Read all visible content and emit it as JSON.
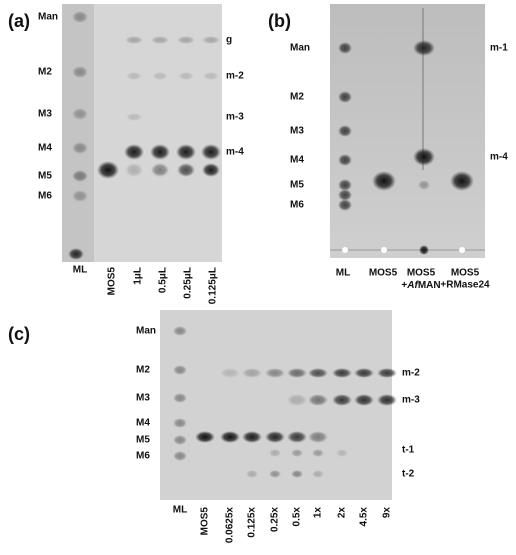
{
  "panels": [
    {
      "label": "(a)",
      "left_labels": [
        "Man",
        "M2",
        "M3",
        "M4",
        "M5",
        "M6"
      ],
      "right_labels": [
        "g",
        "m-2",
        "m-3",
        "m-4"
      ],
      "lanes": [
        [
          "ML"
        ],
        [
          "MOS5"
        ],
        [
          "1μL"
        ],
        [
          "0.5μL"
        ],
        [
          "0.25μL"
        ],
        [
          "0.125μL"
        ]
      ]
    },
    {
      "label": "(b)",
      "left_labels": [
        "Man",
        "M2",
        "M3",
        "M4",
        "M5",
        "M6"
      ],
      "right_labels": [
        "m-1",
        "m-4"
      ],
      "lanes": [
        [
          "ML"
        ],
        [
          "MOS5"
        ],
        [
          "MOS5",
          [
            {
              "text": "+"
            },
            {
              "text": "Af",
              "italic": true
            },
            {
              "text": "MAN"
            }
          ]
        ],
        [
          "MOS5",
          "+RMase24"
        ]
      ]
    },
    {
      "label": "(c)",
      "left_labels": [
        "Man",
        "M2",
        "M3",
        "M4",
        "M5",
        "M6"
      ],
      "right_labels": [
        "m-2",
        "m-3",
        "t-1",
        "t-2"
      ],
      "lanes": [
        [
          "ML"
        ],
        [
          "MOS5"
        ],
        [
          "0.0625x"
        ],
        [
          "0.125x"
        ],
        [
          "0.25x"
        ],
        [
          "0.5x"
        ],
        [
          "1x"
        ],
        [
          "2x"
        ],
        [
          "4.5x"
        ],
        [
          "9x"
        ]
      ]
    }
  ]
}
